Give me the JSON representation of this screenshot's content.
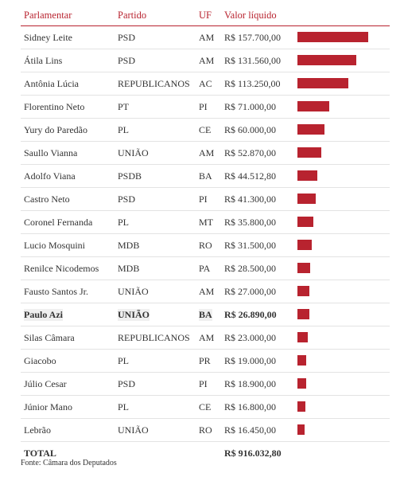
{
  "header": {
    "name": "Parlamentar",
    "party": "Partido",
    "uf": "UF",
    "value": "Valor líquido"
  },
  "chart_data": {
    "type": "table",
    "columns": [
      "Parlamentar",
      "Partido",
      "UF",
      "Valor líquido"
    ],
    "rows": [
      {
        "name": "Sidney Leite",
        "party": "PSD",
        "uf": "AM",
        "value_label": "R$ 157.700,00",
        "value": 157700.0
      },
      {
        "name": "Átila Lins",
        "party": "PSD",
        "uf": "AM",
        "value_label": "R$ 131.560,00",
        "value": 131560.0
      },
      {
        "name": "Antônia Lúcia",
        "party": "REPUBLICANOS",
        "uf": "AC",
        "value_label": "R$ 113.250,00",
        "value": 113250.0
      },
      {
        "name": "Florentino Neto",
        "party": "PT",
        "uf": "PI",
        "value_label": "R$ 71.000,00",
        "value": 71000.0
      },
      {
        "name": "Yury do Paredão",
        "party": "PL",
        "uf": "CE",
        "value_label": "R$ 60.000,00",
        "value": 60000.0
      },
      {
        "name": "Saullo Vianna",
        "party": "UNIÃO",
        "uf": "AM",
        "value_label": "R$ 52.870,00",
        "value": 52870.0
      },
      {
        "name": "Adolfo Viana",
        "party": "PSDB",
        "uf": "BA",
        "value_label": "R$ 44.512,80",
        "value": 44512.8
      },
      {
        "name": "Castro Neto",
        "party": "PSD",
        "uf": "PI",
        "value_label": "R$ 41.300,00",
        "value": 41300.0
      },
      {
        "name": "Coronel Fernanda",
        "party": "PL",
        "uf": "MT",
        "value_label": "R$ 35.800,00",
        "value": 35800.0
      },
      {
        "name": "Lucio Mosquini",
        "party": "MDB",
        "uf": "RO",
        "value_label": "R$ 31.500,00",
        "value": 31500.0
      },
      {
        "name": "Renilce Nicodemos",
        "party": "MDB",
        "uf": "PA",
        "value_label": "R$ 28.500,00",
        "value": 28500.0
      },
      {
        "name": "Fausto Santos Jr.",
        "party": "UNIÃO",
        "uf": "AM",
        "value_label": "R$ 27.000,00",
        "value": 27000.0
      },
      {
        "name": "Paulo Azi",
        "party": "UNIÃO",
        "uf": "BA",
        "value_label": "R$ 26.890,00",
        "value": 26890.0,
        "highlighted": true
      },
      {
        "name": "Silas Câmara",
        "party": "REPUBLICANOS",
        "uf": "AM",
        "value_label": "R$ 23.000,00",
        "value": 23000.0
      },
      {
        "name": "Giacobo",
        "party": "PL",
        "uf": "PR",
        "value_label": "R$ 19.000,00",
        "value": 19000.0
      },
      {
        "name": "Júlio Cesar",
        "party": "PSD",
        "uf": "PI",
        "value_label": "R$ 18.900,00",
        "value": 18900.0
      },
      {
        "name": "Júnior Mano",
        "party": "PL",
        "uf": "CE",
        "value_label": "R$ 16.800,00",
        "value": 16800.0
      },
      {
        "name": "Lebrão",
        "party": "UNIÃO",
        "uf": "RO",
        "value_label": "R$ 16.450,00",
        "value": 16450.0
      }
    ],
    "bar_color": "#b8232f"
  },
  "total": {
    "label": "TOTAL",
    "value_label": "R$ 916.032,80"
  },
  "source": "Fonte: Câmara dos Deputados"
}
